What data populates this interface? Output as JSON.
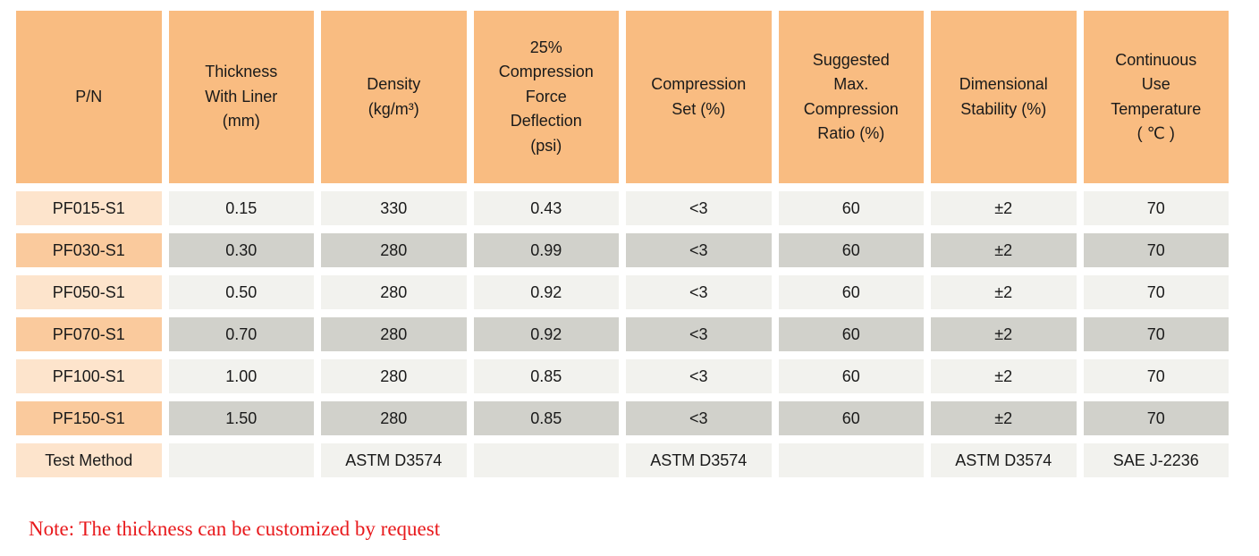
{
  "colors": {
    "header_bg": "#f9bc81",
    "pn_row_light": "#fde4cc",
    "pn_row_dark": "#faca9d",
    "cell_light": "#f2f2ee",
    "cell_dark": "#d1d1cb",
    "note_red": "#e8191c",
    "text": "#1a1a1a"
  },
  "table": {
    "columns": [
      "P/N",
      "Thickness\nWith Liner\n(mm)",
      "Density\n(kg/m³)",
      "25%\nCompression\nForce\nDeflection\n(psi)",
      "Compression\nSet (%)",
      "Suggested\nMax.\nCompression\nRatio (%)",
      "Dimensional\nStability (%)",
      "Continuous\nUse\nTemperature\n( ℃ )"
    ],
    "rows": [
      {
        "pn": "PF015-S1",
        "values": [
          "0.15",
          "330",
          "0.43",
          "<3",
          "60",
          "±2",
          "70"
        ]
      },
      {
        "pn": "PF030-S1",
        "values": [
          "0.30",
          "280",
          "0.99",
          "<3",
          "60",
          "±2",
          "70"
        ]
      },
      {
        "pn": "PF050-S1",
        "values": [
          "0.50",
          "280",
          "0.92",
          "<3",
          "60",
          "±2",
          "70"
        ]
      },
      {
        "pn": "PF070-S1",
        "values": [
          "0.70",
          "280",
          "0.92",
          "<3",
          "60",
          "±2",
          "70"
        ]
      },
      {
        "pn": "PF100-S1",
        "values": [
          "1.00",
          "280",
          "0.85",
          "<3",
          "60",
          "±2",
          "70"
        ]
      },
      {
        "pn": "PF150-S1",
        "values": [
          "1.50",
          "280",
          "0.85",
          "<3",
          "60",
          "±2",
          "70"
        ]
      },
      {
        "pn": "Test Method",
        "values": [
          "",
          "ASTM D3574",
          "",
          "ASTM D3574",
          "",
          "ASTM D3574",
          "SAE J-2236"
        ]
      }
    ]
  },
  "note": "Note: The thickness can be customized by request"
}
